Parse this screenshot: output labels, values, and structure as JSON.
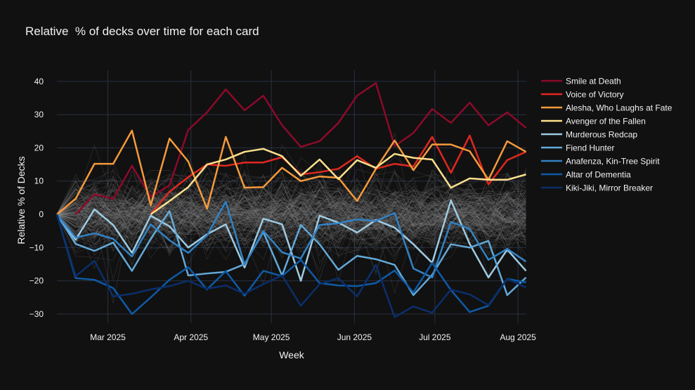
{
  "chart_data": {
    "type": "line",
    "title": "Relative  % of decks over time for each card",
    "xlabel": "Week",
    "ylabel": "Relative % of Decks",
    "ylim": [
      -32,
      44
    ],
    "yticks": [
      40,
      30,
      20,
      10,
      0,
      -10,
      -20,
      -30
    ],
    "ytick_labels": [
      "40",
      "30",
      "20",
      "10",
      "0",
      "−10",
      "−20",
      "−30"
    ],
    "xticks": [
      {
        "date": "2025-03-01",
        "label": "Mar 2025"
      },
      {
        "date": "2025-04-01",
        "label": "Apr 2025"
      },
      {
        "date": "2025-05-01",
        "label": "May 2025"
      },
      {
        "date": "2025-06-01",
        "label": "Jun 2025"
      },
      {
        "date": "2025-07-01",
        "label": "Jul 2025"
      },
      {
        "date": "2025-08-01",
        "label": "Aug 2025"
      }
    ],
    "x_start": "2025-02-10",
    "x_step_days": 7,
    "x_count": 26,
    "grid": true,
    "legend_placement": "right",
    "background_series_count": 150,
    "background_series_color": "#888888",
    "series": [
      {
        "name": "Smile at Death",
        "color": "#8b0a2a",
        "start": 1,
        "values": [
          0,
          6,
          4.7,
          14.6,
          5.3,
          8.7,
          25.4,
          30.7,
          37.6,
          31.3,
          35.7,
          26.8,
          20.3,
          22,
          27.5,
          35.7,
          39.5,
          20.5,
          24.5,
          31.7,
          27.5,
          33.6,
          26.8,
          30.7,
          26
        ]
      },
      {
        "name": "Voice of Victory",
        "color": "#e2271f",
        "start": 5,
        "values": [
          0,
          6.8,
          11.2,
          15,
          14.6,
          15.6,
          15.6,
          17.2,
          12,
          12.7,
          13.7,
          17.5,
          13.7,
          15.2,
          14.4,
          23.3,
          12.5,
          23.7,
          9,
          16.3,
          18.8
        ]
      },
      {
        "name": "Alesha, Who Laughs at Fate",
        "color": "#f59a3c",
        "start": 0,
        "values": [
          0,
          4.7,
          15.2,
          15.2,
          25.2,
          2.7,
          22.8,
          15.9,
          1.7,
          23.3,
          8,
          8.2,
          14,
          10,
          11.4,
          11,
          4,
          13.7,
          22.2,
          13.3,
          21,
          21,
          19,
          10.4,
          22,
          18.8
        ]
      },
      {
        "name": "Avenger of the Fallen",
        "color": "#fde08c",
        "start": 5,
        "values": [
          0,
          4,
          8.2,
          15,
          16.5,
          18.8,
          19.7,
          17.5,
          11.6,
          16.5,
          10.6,
          16.3,
          14,
          18.2,
          17,
          16.5,
          8,
          10.8,
          10.4,
          10.4,
          12
        ]
      },
      {
        "name": "Murderous Redcap",
        "color": "#9ecae1",
        "start": 0,
        "values": [
          0,
          -7.6,
          1.5,
          -3.2,
          -11.6,
          -0.4,
          -3.6,
          -10,
          -6,
          -3,
          -16,
          -1.3,
          -3,
          -20,
          -0.4,
          -2.5,
          -5.5,
          -1.7,
          -4,
          -9,
          -14.6,
          4.2,
          -8.9,
          -19,
          -10.6,
          -17
        ]
      },
      {
        "name": "Fiend Hunter",
        "color": "#63a9d8",
        "start": 0,
        "values": [
          0,
          -8.9,
          -11,
          -8.5,
          -17,
          -7.4,
          1,
          -18.4,
          -17.8,
          -17.3,
          -15,
          -5.3,
          -18.4,
          -3.2,
          -9,
          -16.7,
          -12.5,
          -13.5,
          -15.2,
          -24.3,
          -18.2,
          -9,
          -10,
          -8,
          -24.3,
          -19
        ]
      },
      {
        "name": "Anafenza, Kin-Tree Spirit",
        "color": "#3282c4",
        "start": 0,
        "values": [
          0,
          -7,
          -5.7,
          -7.4,
          -12.7,
          -3,
          -7.8,
          -11.6,
          -6.3,
          3.8,
          -15.2,
          -5,
          -11.4,
          -13.3,
          -3.2,
          -2.7,
          -1.5,
          -2,
          0.4,
          -16.3,
          -19,
          -2.3,
          -4.4,
          -13.7,
          -10.4,
          -14.2
        ]
      },
      {
        "name": "Altar of Dementia",
        "color": "#0f5aa6",
        "start": 0,
        "values": [
          0,
          -19.2,
          -19.7,
          -22.2,
          -30,
          -25,
          -19.7,
          -15.9,
          -22.6,
          -17.1,
          -24.5,
          -17,
          -18.6,
          -13.7,
          -20.7,
          -21.4,
          -21.6,
          -20.7,
          -16.9,
          -23.5,
          -14.6,
          -22.8,
          -29.4,
          -27.5,
          -19.4,
          -20.5
        ]
      },
      {
        "name": "Kiki-Jiki, Mirror Breaker",
        "color": "#0a2f6b",
        "start": 0,
        "values": [
          0,
          -18.6,
          -14,
          -24.7,
          -23.9,
          -22.6,
          -21.6,
          -20,
          -22.4,
          -21.4,
          -23.9,
          -21,
          -18.4,
          -27.5,
          -21,
          -19.2,
          -24.7,
          -15.2,
          -30.9,
          -27.7,
          -29.6,
          -22.6,
          -24.1,
          -27.3,
          -19.4,
          -22
        ]
      }
    ]
  }
}
